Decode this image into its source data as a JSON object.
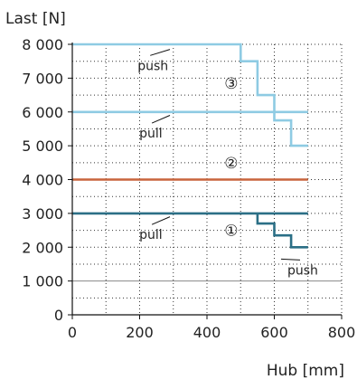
{
  "chart_data": {
    "type": "line",
    "title": "",
    "ylabel": "Last [N]",
    "xlabel": "Hub [mm]",
    "xlim": [
      0,
      800
    ],
    "ylim": [
      0,
      8000
    ],
    "xticks": [
      0,
      200,
      400,
      600,
      800
    ],
    "xtick_labels": [
      "0",
      "200",
      "400",
      "600",
      "800"
    ],
    "yticks": [
      0,
      1000,
      2000,
      3000,
      4000,
      5000,
      6000,
      7000,
      8000
    ],
    "ytick_labels": [
      "0",
      "1 000",
      "2 000",
      "3 000",
      "4 000",
      "5 000",
      "6 000",
      "7 000",
      "8 000"
    ],
    "grid": "dotted",
    "series": [
      {
        "label": "③ push",
        "color": "#8ecbe3",
        "points": [
          [
            0,
            8000
          ],
          [
            500,
            8000
          ],
          [
            500,
            7500
          ],
          [
            550,
            7500
          ],
          [
            550,
            6500
          ],
          [
            600,
            6500
          ],
          [
            600,
            5750
          ],
          [
            650,
            5750
          ],
          [
            650,
            5000
          ],
          [
            700,
            5000
          ]
        ]
      },
      {
        "label": "③ pull",
        "color": "#8ecbe3",
        "points": [
          [
            0,
            6000
          ],
          [
            700,
            6000
          ]
        ]
      },
      {
        "label": "②",
        "color": "#c8643c",
        "points": [
          [
            0,
            4000
          ],
          [
            700,
            4000
          ]
        ]
      },
      {
        "label": "① pull",
        "color": "#2b6f86",
        "points": [
          [
            0,
            3000
          ],
          [
            700,
            3000
          ]
        ]
      },
      {
        "label": "① push",
        "color": "#2b6f86",
        "points": [
          [
            550,
            3000
          ],
          [
            550,
            2700
          ],
          [
            600,
            2700
          ],
          [
            600,
            2350
          ],
          [
            650,
            2350
          ],
          [
            650,
            2000
          ],
          [
            700,
            2000
          ]
        ]
      }
    ],
    "annotations": [
      {
        "text": "push",
        "x": 210,
        "y": 7350,
        "ptr": [
          290,
          7850
        ]
      },
      {
        "text": "pull",
        "x": 215,
        "y": 5350,
        "ptr": [
          290,
          5900
        ]
      },
      {
        "text": "pull",
        "x": 215,
        "y": 2350,
        "ptr": [
          290,
          2900
        ]
      },
      {
        "text": "push",
        "x": 655,
        "y": 1300,
        "ptr": [
          620,
          1650
        ]
      },
      {
        "text": "③",
        "x": 472,
        "y": 6850
      },
      {
        "text": "②",
        "x": 472,
        "y": 4500
      },
      {
        "text": "①",
        "x": 472,
        "y": 2500
      }
    ]
  }
}
